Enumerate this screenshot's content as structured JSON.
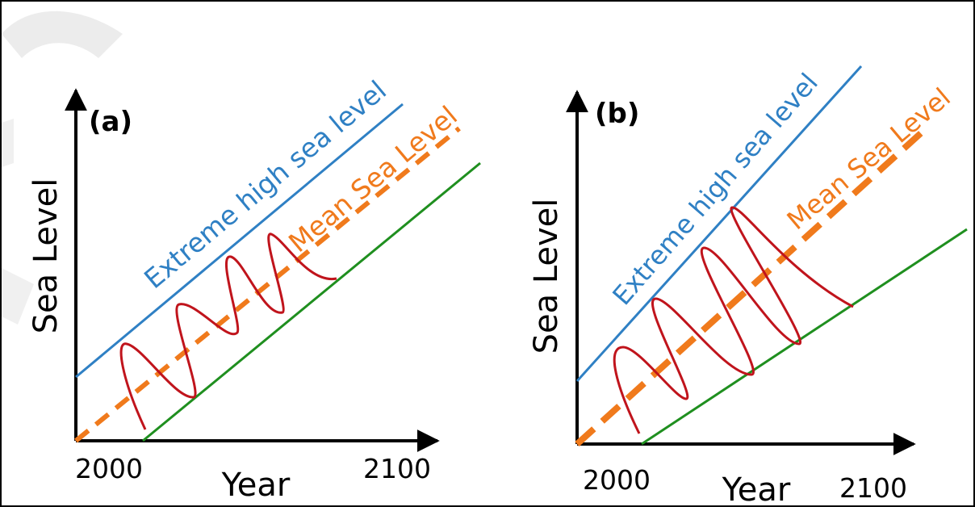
{
  "colors": {
    "axis": "#000000",
    "extreme_line": "#2f80c4",
    "mean_line": "#f07a1c",
    "low_line": "#1f8f1f",
    "wave": "#c0141c",
    "watermark": "#e6e6e6"
  },
  "panels": [
    {
      "tag": "(a)",
      "y_axis_label": "Sea Level",
      "x_axis_label": "Year",
      "x_start": "2000",
      "x_end": "2100",
      "extreme_label": "Extreme high sea level",
      "mean_label": "Mean Sea Level"
    },
    {
      "tag": "(b)",
      "y_axis_label": "Sea Level",
      "x_axis_label": "Year",
      "x_start": "2000",
      "x_end": "2100",
      "extreme_label": "Extreme high sea level",
      "mean_label": "Mean Sea Level"
    }
  ]
}
